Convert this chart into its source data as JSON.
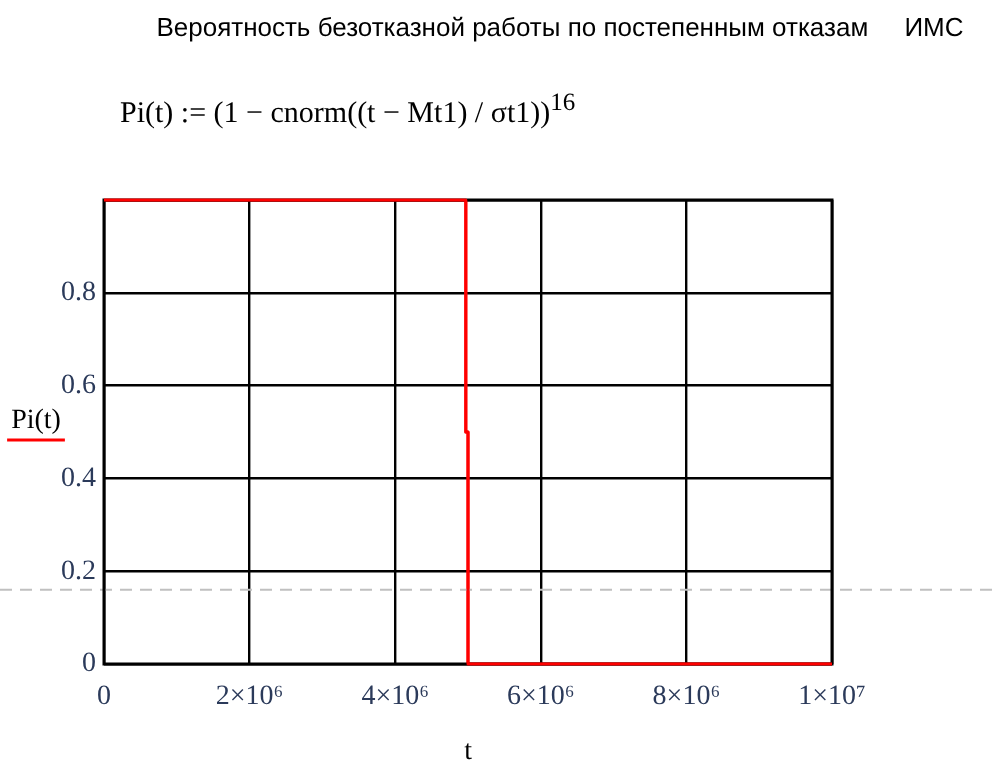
{
  "chart_data": {
    "type": "line",
    "title": "Вероятность безотказной работы по постепенным отказам     ИМС",
    "annotations": [
      "Pi(t) := (1 − cnorm((t − Mt1) / σt1))$^{16}$"
    ],
    "xlabel": "t",
    "ylabel": "Pi(t)",
    "series": [
      {
        "color": "#ff0000",
        "x": [
          0,
          4970000,
          4970000,
          5000000,
          5000000,
          10000000
        ],
        "values": [
          1,
          1,
          0.5,
          0.5,
          0,
          0
        ]
      }
    ],
    "xlim": [
      0,
      10000000
    ],
    "xticks": [
      0,
      {
        "value": 2000000,
        "label": "2×10⁶"
      },
      {
        "value": 4000000,
        "label": "4×10⁶"
      },
      {
        "value": 6000000,
        "label": "6×10⁶"
      },
      {
        "value": 8000000,
        "label": "8×10⁶"
      },
      {
        "value": 10000000,
        "label": "1×10⁷"
      }
    ],
    "ylim": [
      0,
      1
    ],
    "yticks": [
      0,
      0.2,
      0.4,
      0.6,
      0.8,
      {
        "value": 1,
        "label": null
      }
    ],
    "ref_lines": [
      {
        "axis": "y",
        "value": 0.16,
        "color": "#c0c0c0",
        "line_style": "dashed"
      }
    ],
    "grid": true,
    "legend": false,
    "marker": "none",
    "line_style": "solid"
  }
}
